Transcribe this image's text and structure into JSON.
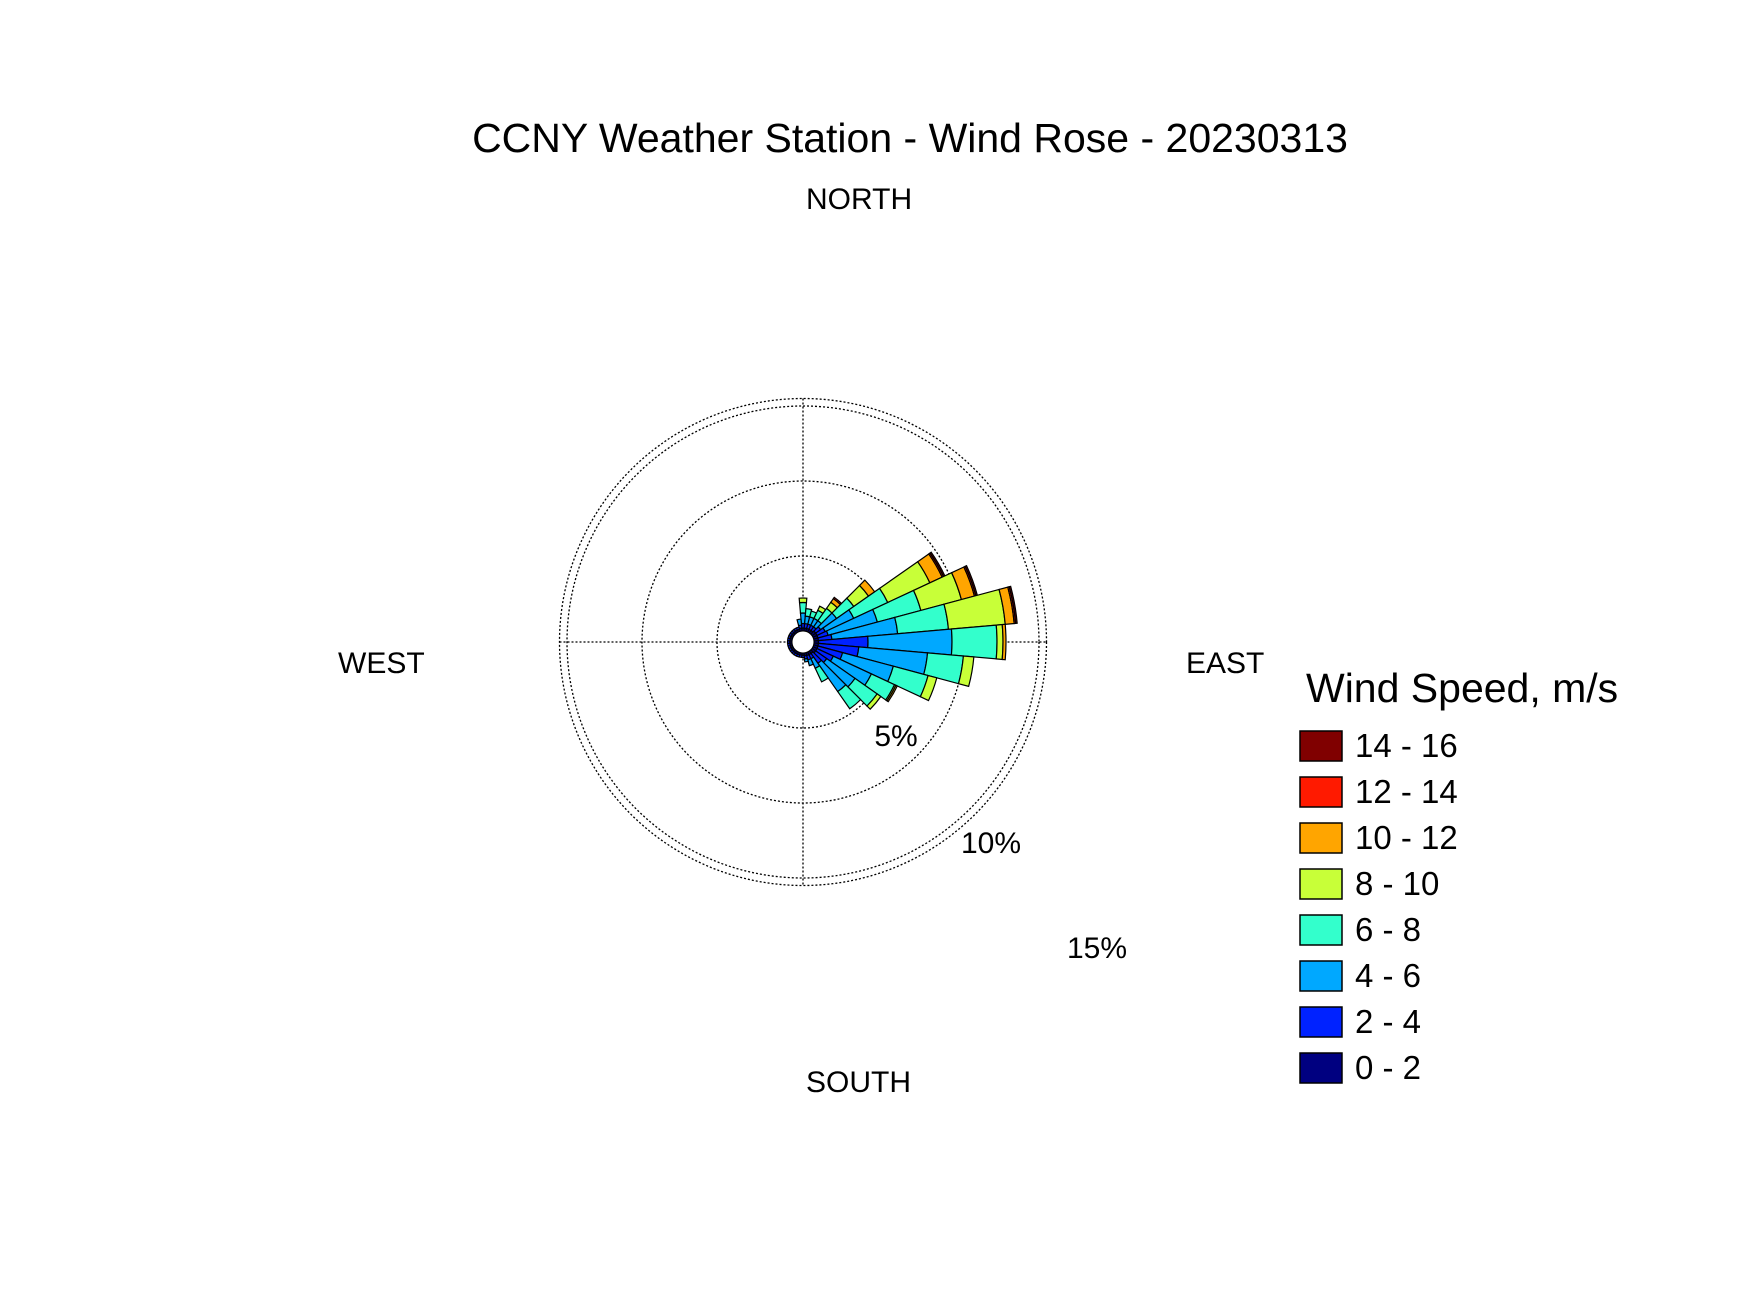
{
  "chart_data": {
    "type": "wind_rose",
    "title": "CCNY Weather Station - Wind Rose - 20230313",
    "direction_labels": {
      "north": "NORTH",
      "south": "SOUTH",
      "east": "EAST",
      "west": "WEST"
    },
    "radial_ticks": [
      {
        "value": 5,
        "label": "5%"
      },
      {
        "value": 10,
        "label": "10%"
      },
      {
        "value": 15,
        "label": "15%"
      }
    ],
    "radial_max": 15.5,
    "legend_title": "Wind Speed, m/s",
    "legend_placement": "right",
    "speed_bins": [
      {
        "label": "0 - 2",
        "color": "#000080"
      },
      {
        "label": "2 - 4",
        "color": "#0022FF"
      },
      {
        "label": "4 - 6",
        "color": "#00A8FF"
      },
      {
        "label": "6 - 8",
        "color": "#33FFCC"
      },
      {
        "label": "8 - 10",
        "color": "#C8FF38"
      },
      {
        "label": "10 - 12",
        "color": "#FFA500"
      },
      {
        "label": "12 - 14",
        "color": "#FF1A00"
      },
      {
        "label": "14 - 16",
        "color": "#800000"
      }
    ],
    "sector_width_deg": 10,
    "sectors": [
      {
        "direction": 0,
        "cumulative": [
          0.2,
          0.5,
          1.2,
          1.9,
          2.2
        ]
      },
      {
        "direction": 10,
        "cumulative": [
          0.2,
          0.5,
          1.0,
          1.5
        ]
      },
      {
        "direction": 20,
        "cumulative": [
          0.2,
          0.5,
          1.0,
          1.4
        ]
      },
      {
        "direction": 30,
        "cumulative": [
          0.2,
          0.5,
          1.0,
          1.6,
          1.9
        ]
      },
      {
        "direction": 40,
        "cumulative": [
          0.2,
          0.5,
          1.0,
          2.0,
          2.5,
          2.8,
          2.9
        ]
      },
      {
        "direction": 50,
        "cumulative": [
          0.3,
          0.7,
          2.0,
          3.4,
          4.6,
          5.1
        ]
      },
      {
        "direction": 60,
        "cumulative": [
          0.3,
          0.9,
          3.0,
          5.5,
          8.6,
          9.5,
          9.6,
          9.7
        ]
      },
      {
        "direction": 70,
        "cumulative": [
          0.3,
          1.0,
          4.4,
          7.4,
          10.2,
          11.1,
          11.2,
          11.3
        ]
      },
      {
        "direction": 80,
        "cumulative": [
          0.3,
          1.2,
          5.6,
          9.0,
          12.8,
          13.4,
          13.5,
          13.6
        ]
      },
      {
        "direction": 90,
        "cumulative": [
          0.3,
          3.6,
          9.2,
          12.2,
          12.6,
          12.8
        ]
      },
      {
        "direction": 100,
        "cumulative": [
          0.3,
          3.0,
          7.6,
          10.0,
          10.7
        ]
      },
      {
        "direction": 110,
        "cumulative": [
          0.3,
          2.0,
          5.5,
          7.9,
          8.5
        ]
      },
      {
        "direction": 120,
        "cumulative": [
          0.3,
          1.5,
          4.3,
          6.0,
          6.1,
          6.2
        ]
      },
      {
        "direction": 130,
        "cumulative": [
          0.3,
          1.2,
          3.5,
          5.3,
          5.6
        ]
      },
      {
        "direction": 140,
        "cumulative": [
          0.2,
          1.0,
          3.3,
          4.7
        ]
      },
      {
        "direction": 150,
        "cumulative": [
          0.2,
          0.5,
          1.2,
          2.2
        ]
      },
      {
        "direction": 160,
        "cumulative": [
          0.2,
          0.5,
          0.9
        ]
      },
      {
        "direction": 170,
        "cumulative": [
          0.2,
          0.4,
          0.6
        ]
      },
      {
        "direction": 180,
        "cumulative": [
          0.15,
          0.3
        ]
      },
      {
        "direction": 190,
        "cumulative": [
          0.15,
          0.3
        ]
      },
      {
        "direction": 200,
        "cumulative": [
          0.15,
          0.3
        ]
      },
      {
        "direction": 210,
        "cumulative": [
          0.15,
          0.3
        ]
      },
      {
        "direction": 220,
        "cumulative": [
          0.15,
          0.3
        ]
      },
      {
        "direction": 230,
        "cumulative": [
          0.15,
          0.3
        ]
      },
      {
        "direction": 240,
        "cumulative": [
          0.15,
          0.3
        ]
      },
      {
        "direction": 250,
        "cumulative": [
          0.15,
          0.3
        ]
      },
      {
        "direction": 260,
        "cumulative": [
          0.15,
          0.3
        ]
      },
      {
        "direction": 270,
        "cumulative": [
          0.15,
          0.3
        ]
      },
      {
        "direction": 280,
        "cumulative": [
          0.15,
          0.3
        ]
      },
      {
        "direction": 290,
        "cumulative": [
          0.15,
          0.3
        ]
      },
      {
        "direction": 300,
        "cumulative": [
          0.15,
          0.3
        ]
      },
      {
        "direction": 310,
        "cumulative": [
          0.15,
          0.3
        ]
      },
      {
        "direction": 320,
        "cumulative": [
          0.15,
          0.3
        ]
      },
      {
        "direction": 330,
        "cumulative": [
          0.15,
          0.3
        ]
      },
      {
        "direction": 340,
        "cumulative": [
          0.15,
          0.3
        ]
      },
      {
        "direction": 350,
        "cumulative": [
          0.2,
          0.4,
          0.8
        ]
      }
    ],
    "grid": true
  }
}
